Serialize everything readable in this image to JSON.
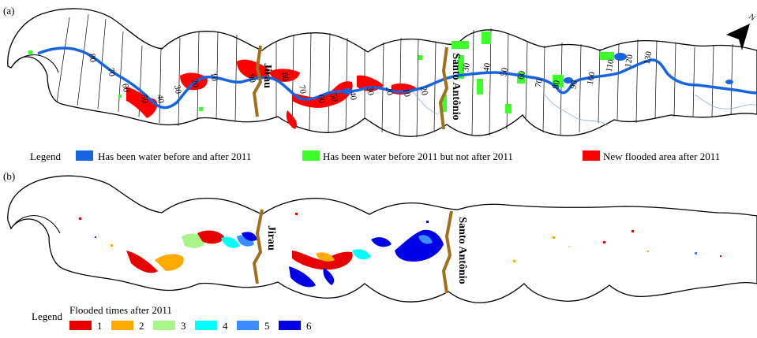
{
  "panel_a": {
    "label": "(a)",
    "north_symbol": "N",
    "dams": [
      "Jirau",
      "Santo Antônio"
    ],
    "km_marks": [
      "80",
      "70",
      "60",
      "50",
      "40",
      "30",
      "20",
      "10",
      "90",
      "80",
      "70",
      "60",
      "50",
      "40",
      "30",
      "20",
      "10",
      "20",
      "30",
      "40",
      "50",
      "60",
      "70",
      "80",
      "90",
      "100",
      "110",
      "120",
      "130"
    ],
    "legend_title": "Legend",
    "legend": [
      {
        "label": "Has been water before and after 2011",
        "color": "#1565e0"
      },
      {
        "label": "Has been water before 2011 but not after 2011",
        "color": "#3dff2a"
      },
      {
        "label": "New flooded area after 2011",
        "color": "#ff0000"
      }
    ]
  },
  "panel_b": {
    "label": "(b)",
    "dams": [
      "Jirau",
      "Santo Antônio"
    ],
    "legend_title": "Legend",
    "legend_subtitle": "Flooded times after 2011",
    "legend": [
      {
        "label": "1",
        "color": "#e60000"
      },
      {
        "label": "2",
        "color": "#ffaa00"
      },
      {
        "label": "3",
        "color": "#a8f58a"
      },
      {
        "label": "4",
        "color": "#00ffff"
      },
      {
        "label": "5",
        "color": "#3d8cff"
      },
      {
        "label": "6",
        "color": "#0000e6"
      }
    ]
  },
  "colors": {
    "river": "#1565e0",
    "dam": "#a0701e",
    "outline": "#000000",
    "minor_channels": "#8aaee0"
  }
}
